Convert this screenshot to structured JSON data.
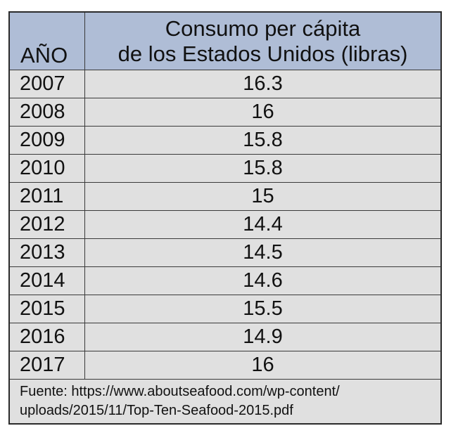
{
  "chart_data": {
    "type": "table",
    "columns": [
      "AÑO",
      "Consumo per cápita de los Estados Unidos (libras)"
    ],
    "header_line1": "Consumo per cápita",
    "header_line2": "de los Estados Unidos (libras)",
    "rows": [
      {
        "year": "2007",
        "value": "16.3"
      },
      {
        "year": "2008",
        "value": "16"
      },
      {
        "year": "2009",
        "value": "15.8"
      },
      {
        "year": "2010",
        "value": "15.8"
      },
      {
        "year": "2011",
        "value": "15"
      },
      {
        "year": "2012",
        "value": "14.4"
      },
      {
        "year": "2013",
        "value": "14.5"
      },
      {
        "year": "2014",
        "value": "14.6"
      },
      {
        "year": "2015",
        "value": "15.5"
      },
      {
        "year": "2016",
        "value": "14.9"
      },
      {
        "year": "2017",
        "value": "16"
      }
    ],
    "source_line1": "Fuente: https://www.aboutseafood.com/wp-content/",
    "source_line2": "uploads/2015/11/Top-Ten-Seafood-2015.pdf"
  },
  "colors": {
    "header_bg": "#afbdd6",
    "body_bg": "#e0e0e0"
  }
}
